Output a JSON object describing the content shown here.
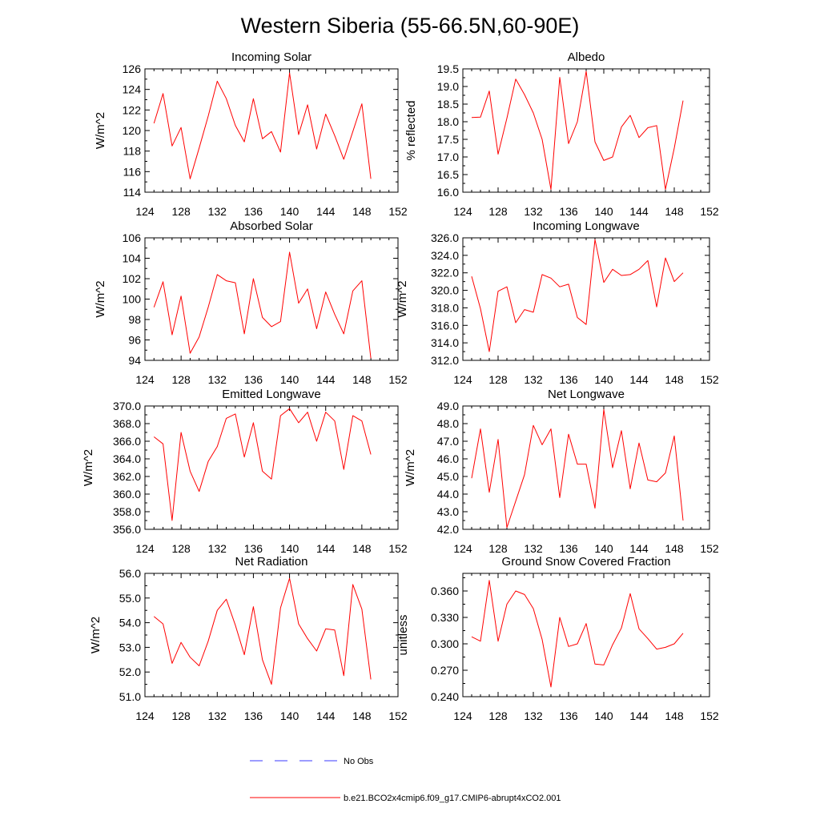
{
  "title": "Western Siberia (55-66.5N,60-90E)",
  "chart_data": [
    {
      "type": "line",
      "title": "Incoming Solar",
      "ylabel": "W/m^2",
      "xlim": [
        124,
        152
      ],
      "ylim": [
        114,
        126
      ],
      "xticks": [
        "124",
        "128",
        "132",
        "136",
        "140",
        "144",
        "148",
        "152"
      ],
      "yticks": [
        "114",
        "116",
        "118",
        "120",
        "122",
        "124",
        "126"
      ],
      "x": [
        125,
        126,
        127,
        128,
        129,
        130,
        131,
        132,
        133,
        134,
        135,
        136,
        137,
        138,
        139,
        140,
        141,
        142,
        143,
        144,
        145,
        146,
        147,
        148,
        149
      ],
      "series": [
        {
          "name": "b.e21.BCO2x4cmip6.f09_g17.CMIP6-abrupt4xCO2.001",
          "values": [
            120.7,
            123.6,
            118.5,
            120.3,
            115.3,
            118.3,
            121.4,
            124.8,
            123.1,
            120.5,
            118.9,
            123.1,
            119.2,
            119.9,
            117.9,
            125.6,
            119.6,
            122.5,
            118.2,
            121.6,
            119.5,
            117.2,
            119.9,
            122.6,
            115.3
          ]
        }
      ]
    },
    {
      "type": "line",
      "title": "Albedo",
      "ylabel": "% reflected",
      "xlim": [
        124,
        152
      ],
      "ylim": [
        16.0,
        19.5
      ],
      "xticks": [
        "124",
        "128",
        "132",
        "136",
        "140",
        "144",
        "148",
        "152"
      ],
      "yticks": [
        "16.0",
        "16.5",
        "17.0",
        "17.5",
        "18.0",
        "18.5",
        "19.0",
        "19.5"
      ],
      "x": [
        125,
        126,
        127,
        128,
        129,
        130,
        131,
        132,
        133,
        134,
        135,
        136,
        137,
        138,
        139,
        140,
        141,
        142,
        143,
        144,
        145,
        146,
        147,
        148,
        149
      ],
      "series": [
        {
          "name": "b.e21.BCO2x4cmip6.f09_g17.CMIP6-abrupt4xCO2.001",
          "values": [
            18.12,
            18.13,
            18.87,
            17.08,
            18.1,
            19.21,
            18.77,
            18.25,
            17.5,
            16.08,
            19.26,
            17.38,
            18.0,
            19.43,
            17.43,
            16.9,
            17.0,
            17.85,
            18.18,
            17.55,
            17.83,
            17.89,
            16.08,
            17.25,
            18.6
          ]
        }
      ]
    },
    {
      "type": "line",
      "title": "Absorbed Solar",
      "ylabel": "W/m^2",
      "xlim": [
        124,
        152
      ],
      "ylim": [
        94,
        106
      ],
      "xticks": [
        "124",
        "128",
        "132",
        "136",
        "140",
        "144",
        "148",
        "152"
      ],
      "yticks": [
        "94",
        "96",
        "98",
        "100",
        "102",
        "104",
        "106"
      ],
      "x": [
        125,
        126,
        127,
        128,
        129,
        130,
        131,
        132,
        133,
        134,
        135,
        136,
        137,
        138,
        139,
        140,
        141,
        142,
        143,
        144,
        145,
        146,
        147,
        148,
        149
      ],
      "series": [
        {
          "name": "b.e21.BCO2x4cmip6.f09_g17.CMIP6-abrupt4xCO2.001",
          "values": [
            99.2,
            101.7,
            96.5,
            100.3,
            94.7,
            96.3,
            99.2,
            102.4,
            101.8,
            101.6,
            96.6,
            102.0,
            98.2,
            97.3,
            97.8,
            104.6,
            99.6,
            101.0,
            97.1,
            100.7,
            98.5,
            96.6,
            100.8,
            101.8,
            94.2
          ]
        }
      ]
    },
    {
      "type": "line",
      "title": "Incoming Longwave",
      "ylabel": "W/m^2",
      "xlim": [
        124,
        152
      ],
      "ylim": [
        312.0,
        326.0
      ],
      "xticks": [
        "124",
        "128",
        "132",
        "136",
        "140",
        "144",
        "148",
        "152"
      ],
      "yticks": [
        "312.0",
        "314.0",
        "316.0",
        "318.0",
        "320.0",
        "322.0",
        "324.0",
        "326.0"
      ],
      "x": [
        125,
        126,
        127,
        128,
        129,
        130,
        131,
        132,
        133,
        134,
        135,
        136,
        137,
        138,
        139,
        140,
        141,
        142,
        143,
        144,
        145,
        146,
        147,
        148,
        149
      ],
      "series": [
        {
          "name": "b.e21.BCO2x4cmip6.f09_g17.CMIP6-abrupt4xCO2.001",
          "values": [
            321.6,
            317.9,
            313.0,
            319.9,
            320.4,
            316.3,
            317.8,
            317.5,
            321.8,
            321.4,
            320.4,
            320.7,
            316.9,
            316.1,
            325.8,
            320.9,
            322.4,
            321.7,
            321.8,
            322.4,
            323.4,
            318.1,
            323.7,
            321.0,
            322.0
          ]
        }
      ]
    },
    {
      "type": "line",
      "title": "Emitted Longwave",
      "ylabel": "W/m^2",
      "xlim": [
        124,
        152
      ],
      "ylim": [
        356.0,
        370.0
      ],
      "xticks": [
        "124",
        "128",
        "132",
        "136",
        "140",
        "144",
        "148",
        "152"
      ],
      "yticks": [
        "356.0",
        "358.0",
        "360.0",
        "362.0",
        "364.0",
        "366.0",
        "368.0",
        "370.0"
      ],
      "x": [
        125,
        126,
        127,
        128,
        129,
        130,
        131,
        132,
        133,
        134,
        135,
        136,
        137,
        138,
        139,
        140,
        141,
        142,
        143,
        144,
        145,
        146,
        147,
        148,
        149
      ],
      "series": [
        {
          "name": "b.e21.BCO2x4cmip6.f09_g17.CMIP6-abrupt4xCO2.001",
          "values": [
            366.5,
            365.7,
            357.0,
            367.0,
            362.6,
            360.3,
            363.7,
            365.4,
            368.6,
            369.1,
            364.2,
            368.1,
            362.6,
            361.7,
            368.9,
            369.7,
            368.1,
            369.3,
            366.0,
            369.3,
            368.3,
            362.8,
            368.9,
            368.3,
            364.5
          ]
        }
      ]
    },
    {
      "type": "line",
      "title": "Net Longwave",
      "ylabel": "W/m^2",
      "xlim": [
        124,
        152
      ],
      "ylim": [
        42.0,
        49.0
      ],
      "xticks": [
        "124",
        "128",
        "132",
        "136",
        "140",
        "144",
        "148",
        "152"
      ],
      "yticks": [
        "42.0",
        "43.0",
        "44.0",
        "45.0",
        "46.0",
        "47.0",
        "48.0",
        "49.0"
      ],
      "x": [
        125,
        126,
        127,
        128,
        129,
        130,
        131,
        132,
        133,
        134,
        135,
        136,
        137,
        138,
        139,
        140,
        141,
        142,
        143,
        144,
        145,
        146,
        147,
        148,
        149
      ],
      "series": [
        {
          "name": "b.e21.BCO2x4cmip6.f09_g17.CMIP6-abrupt4xCO2.001",
          "values": [
            44.9,
            47.7,
            44.1,
            47.1,
            42.1,
            43.6,
            45.1,
            47.9,
            46.8,
            47.7,
            43.8,
            47.4,
            45.7,
            45.7,
            43.2,
            48.8,
            45.5,
            47.6,
            44.3,
            46.9,
            44.8,
            44.7,
            45.2,
            47.3,
            42.5
          ]
        }
      ]
    },
    {
      "type": "line",
      "title": "Net Radiation",
      "ylabel": "W/m^2",
      "xlim": [
        124,
        152
      ],
      "ylim": [
        51.0,
        56.0
      ],
      "xticks": [
        "124",
        "128",
        "132",
        "136",
        "140",
        "144",
        "148",
        "152"
      ],
      "yticks": [
        "51.0",
        "52.0",
        "53.0",
        "54.0",
        "55.0",
        "56.0"
      ],
      "x": [
        125,
        126,
        127,
        128,
        129,
        130,
        131,
        132,
        133,
        134,
        135,
        136,
        137,
        138,
        139,
        140,
        141,
        142,
        143,
        144,
        145,
        146,
        147,
        148,
        149
      ],
      "series": [
        {
          "name": "b.e21.BCO2x4cmip6.f09_g17.CMIP6-abrupt4xCO2.001",
          "values": [
            54.25,
            53.95,
            52.35,
            53.2,
            52.6,
            52.25,
            53.25,
            54.5,
            54.95,
            53.9,
            52.7,
            54.65,
            52.5,
            51.5,
            54.6,
            55.8,
            53.95,
            53.35,
            52.85,
            53.75,
            53.7,
            51.85,
            55.55,
            54.55,
            51.7
          ]
        }
      ]
    },
    {
      "type": "line",
      "title": "Ground Snow Covered Fraction",
      "ylabel": "unitless",
      "xlim": [
        124,
        152
      ],
      "ylim": [
        0.24,
        0.38
      ],
      "xticks": [
        "124",
        "128",
        "132",
        "136",
        "140",
        "144",
        "148",
        "152"
      ],
      "yticks": [
        "0.240",
        "0.270",
        "0.300",
        "0.330",
        "0.360"
      ],
      "x": [
        125,
        126,
        127,
        128,
        129,
        130,
        131,
        132,
        133,
        134,
        135,
        136,
        137,
        138,
        139,
        140,
        141,
        142,
        143,
        144,
        145,
        146,
        147,
        148,
        149
      ],
      "series": [
        {
          "name": "b.e21.BCO2x4cmip6.f09_g17.CMIP6-abrupt4xCO2.001",
          "values": [
            0.308,
            0.303,
            0.372,
            0.303,
            0.345,
            0.36,
            0.356,
            0.34,
            0.305,
            0.251,
            0.33,
            0.297,
            0.3,
            0.323,
            0.277,
            0.276,
            0.299,
            0.318,
            0.357,
            0.317,
            0.306,
            0.294,
            0.296,
            0.3,
            0.312
          ]
        }
      ]
    }
  ],
  "legend": {
    "entries": [
      {
        "label": "No Obs",
        "color": "#3a3aff",
        "style": "dashed"
      },
      {
        "label": "b.e21.BCO2x4cmip6.f09_g17.CMIP6-abrupt4xCO2.001",
        "color": "#ff0000",
        "style": "solid"
      }
    ]
  },
  "line_color": "#ff0000"
}
